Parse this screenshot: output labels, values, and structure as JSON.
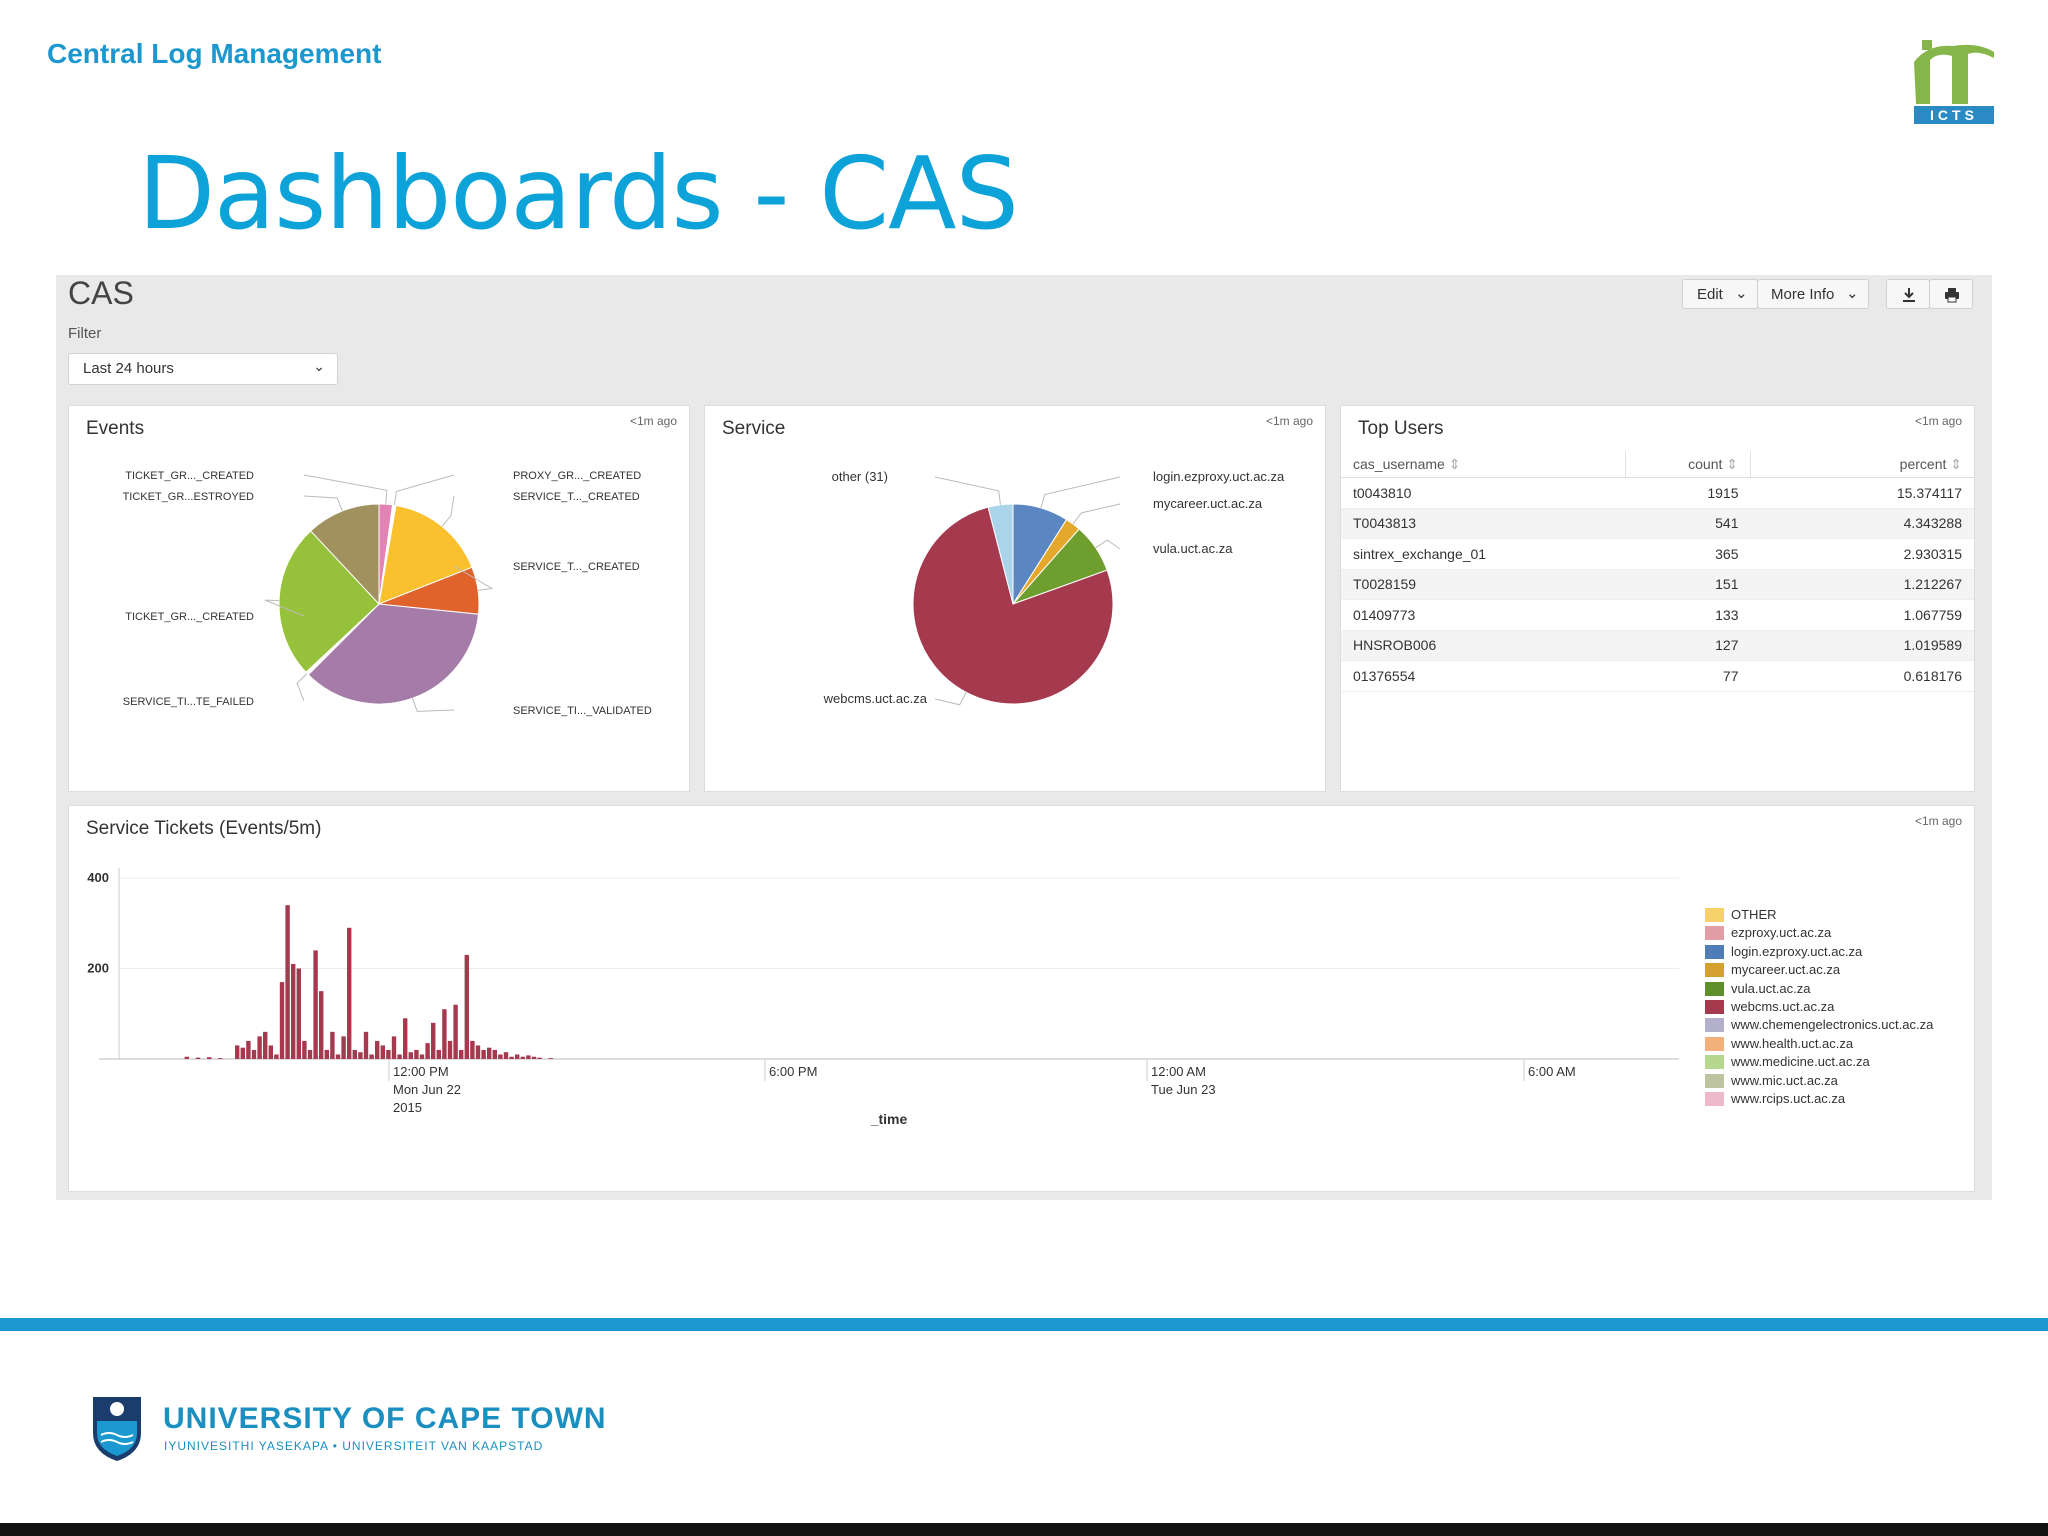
{
  "slide": {
    "header": "Central Log Management",
    "title": "Dashboards - CAS",
    "logo_text": "ICTS"
  },
  "dashboard": {
    "title": "CAS",
    "filter_label": "Filter",
    "filter_value": "Last 24 hours",
    "toolbar": {
      "edit": "Edit",
      "more_info": "More Info"
    },
    "toolbar_icons": [
      "download-icon",
      "print-icon"
    ]
  },
  "panels": {
    "events": {
      "title": "Events",
      "ago": "<1m ago"
    },
    "service": {
      "title": "Service",
      "ago": "<1m ago"
    },
    "top_users": {
      "title": "Top Users",
      "ago": "<1m ago",
      "columns": [
        "cas_username",
        "count",
        "percent"
      ],
      "rows": [
        [
          "t0043810",
          "1915",
          "15.374117"
        ],
        [
          "T0043813",
          "541",
          "4.343288"
        ],
        [
          "sintrex_exchange_01",
          "365",
          "2.930315"
        ],
        [
          "T0028159",
          "151",
          "1.212267"
        ],
        [
          "01409773",
          "133",
          "1.067759"
        ],
        [
          "HNSROB006",
          "127",
          "1.019589"
        ],
        [
          "01376554",
          "77",
          "0.618176"
        ]
      ]
    },
    "tickets": {
      "title": "Service Tickets (Events/5m)",
      "ago": "<1m ago"
    }
  },
  "chart_data": [
    {
      "type": "pie",
      "panel": "Events",
      "labels": [
        "TICKET_GR..._CREATED",
        "PROXY_GR..._CREATED",
        "SERVICE_T..._CREATED",
        "SERVICE_T..._CREATED",
        "SERVICE_TI..._VALIDATED",
        "SERVICE_TI...TE_FAILED",
        "TICKET_GR..._CREATED",
        "TICKET_GR...ESTROYED"
      ],
      "values": [
        2,
        0.5,
        15,
        7,
        33,
        0.5,
        23,
        11
      ],
      "colors": [
        "#e383b3",
        "#ffffff",
        "#fbc02d",
        "#e0632c",
        "#a57ba8",
        "#ffffff",
        "#96c13b",
        "#a0915e"
      ]
    },
    {
      "type": "pie",
      "panel": "Service",
      "labels": [
        "login.ezproxy.uct.ac.za",
        "mycareer.uct.ac.za",
        "vula.uct.ac.za",
        "webcms.uct.ac.za",
        "other (31)"
      ],
      "values": [
        9,
        2.5,
        8,
        76.5,
        4
      ],
      "colors": [
        "#5a87c2",
        "#e5a72c",
        "#6e9e2e",
        "#a53a4f",
        "#a9d4ea"
      ]
    },
    {
      "type": "bar",
      "panel": "Service Tickets (Events/5m)",
      "xlabel": "_time",
      "ylabel": "",
      "ylim": [
        0,
        400
      ],
      "yticks": [
        200,
        400
      ],
      "xticks": [
        {
          "label": "12:00 PM",
          "sub1": "Mon Jun 22",
          "sub2": "2015"
        },
        {
          "label": "6:00 PM",
          "sub1": "",
          "sub2": ""
        },
        {
          "label": "12:00 AM",
          "sub1": "Tue Jun 23",
          "sub2": ""
        },
        {
          "label": "6:00 AM",
          "sub1": "",
          "sub2": ""
        }
      ],
      "legend": [
        "OTHER",
        "ezproxy.uct.ac.za",
        "login.ezproxy.uct.ac.za",
        "mycareer.uct.ac.za",
        "vula.uct.ac.za",
        "webcms.uct.ac.za",
        "www.chemengelectronics.uct.ac.za",
        "www.health.uct.ac.za",
        "www.medicine.uct.ac.za",
        "www.mic.uct.ac.za",
        "www.rcips.uct.ac.za"
      ],
      "legend_colors": [
        "#f7d26b",
        "#e39da6",
        "#4e7db8",
        "#d4a02f",
        "#5f8f2b",
        "#a53a4f",
        "#b3b0cc",
        "#f2b07a",
        "#b5d88e",
        "#bfc4a0",
        "#efb9cc"
      ],
      "series_webcms": [
        0,
        5,
        0,
        3,
        0,
        4,
        0,
        2,
        0,
        0,
        30,
        25,
        40,
        20,
        50,
        60,
        30,
        10,
        170,
        340,
        210,
        200,
        40,
        20,
        240,
        150,
        20,
        60,
        10,
        50,
        290,
        20,
        15,
        60,
        10,
        40,
        30,
        20,
        50,
        10,
        90,
        15,
        20,
        10,
        35,
        80,
        20,
        110,
        40,
        120,
        20,
        230,
        40,
        30,
        20,
        25,
        20,
        10,
        15,
        5,
        10,
        5,
        8,
        5,
        3,
        0,
        2,
        0
      ]
    }
  ],
  "footer": {
    "university": "UNIVERSITY OF CAPE TOWN",
    "subtitle": "IYUNIVESITHI YASEKAPA • UNIVERSITEIT VAN KAAPSTAD"
  }
}
